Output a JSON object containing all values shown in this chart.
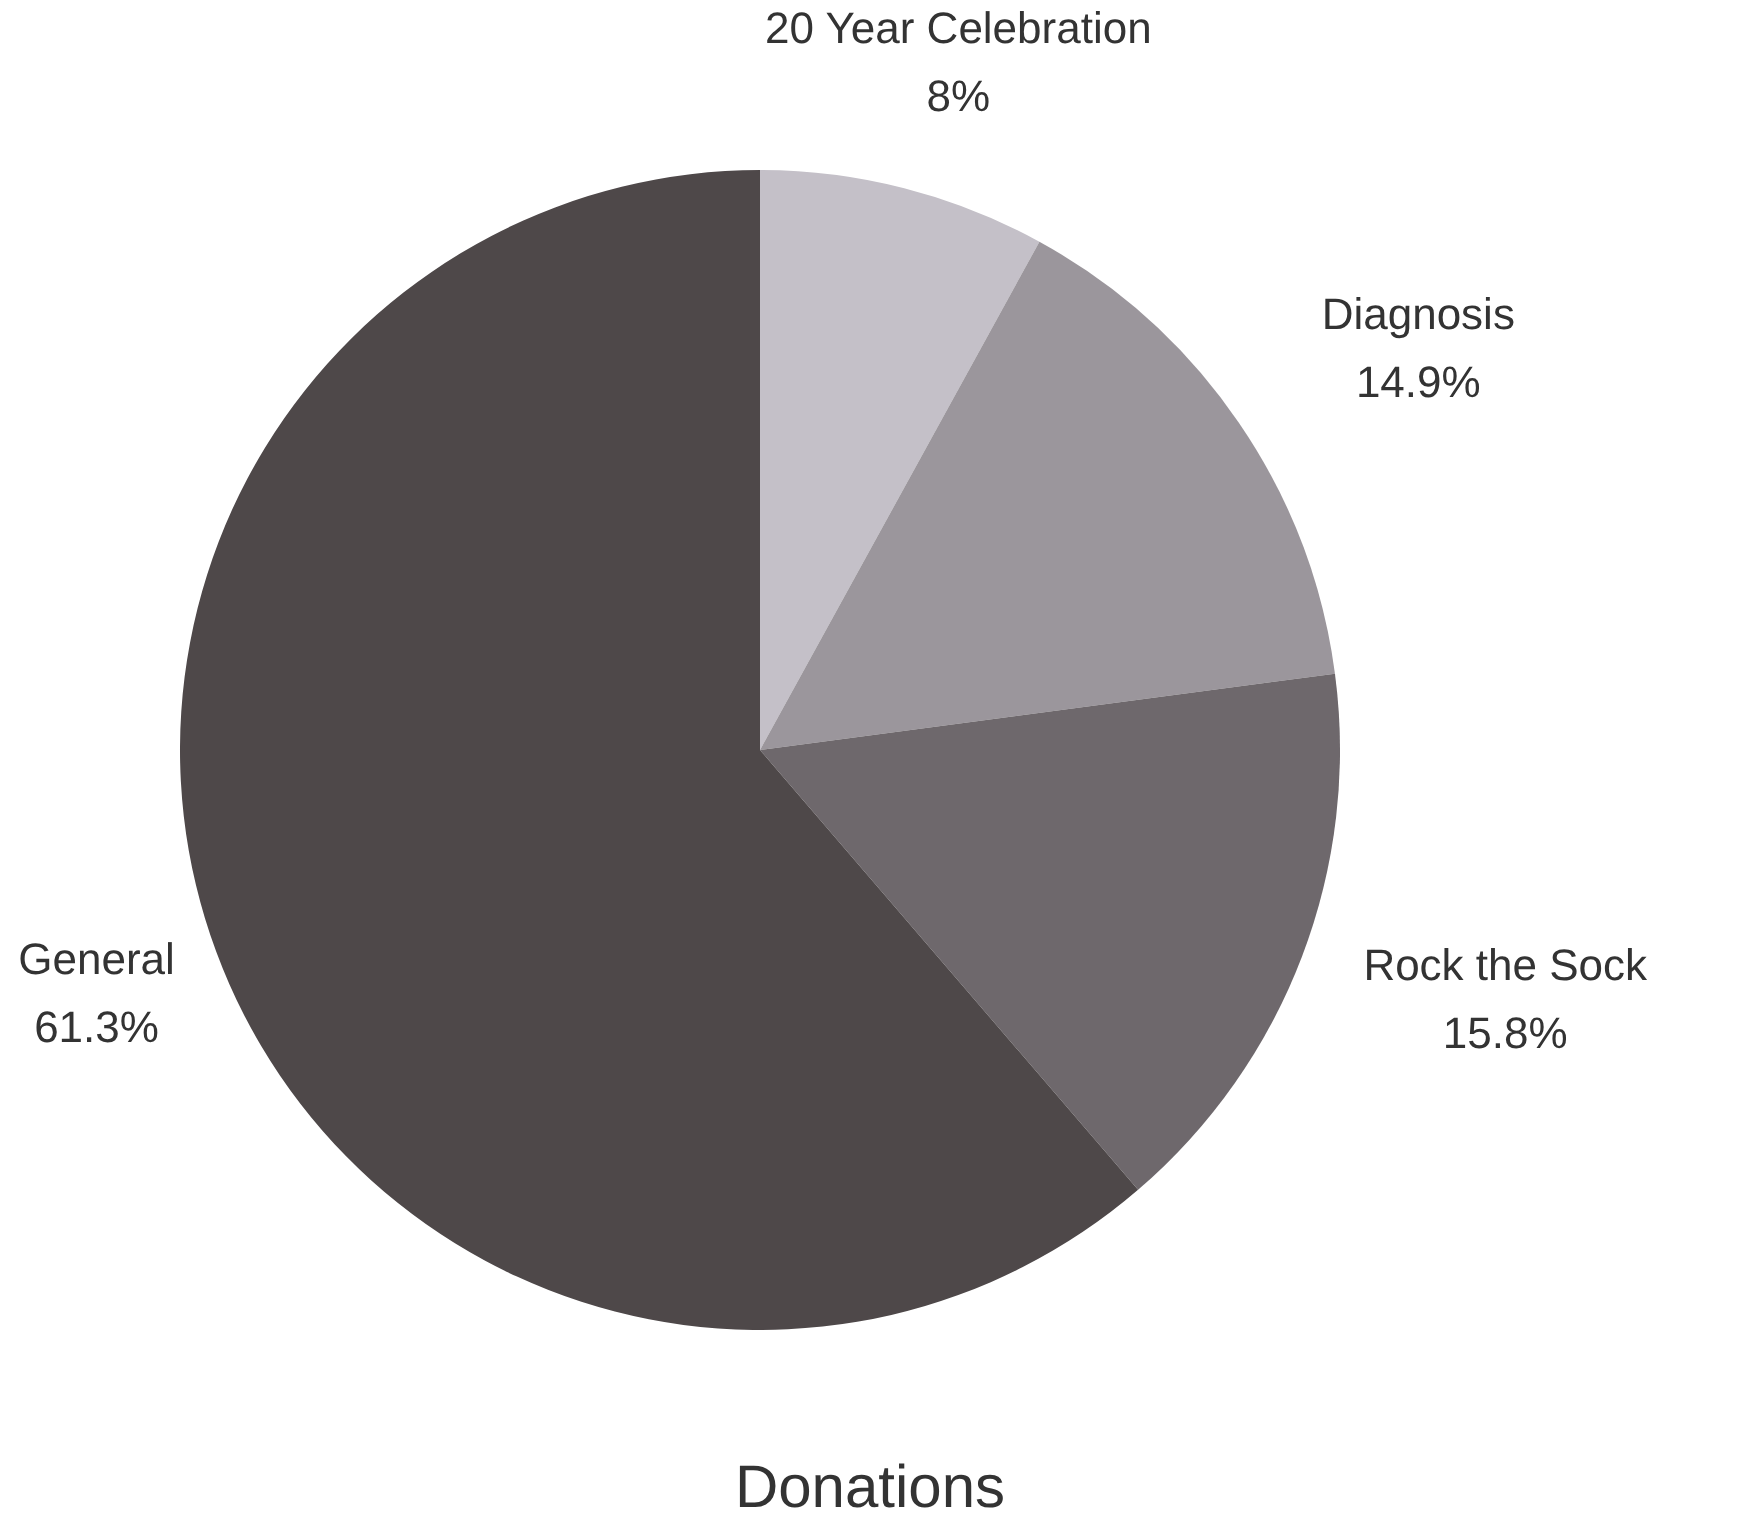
{
  "chart_data": {
    "type": "pie",
    "title": "Donations",
    "categories": [
      "20 Year Celebration",
      "Diagnosis",
      "Rock the Sock",
      "General"
    ],
    "values": [
      8,
      14.9,
      15.8,
      61.3
    ],
    "value_labels": [
      "8%",
      "14.9%",
      "15.8%",
      "61.3%"
    ],
    "colors": [
      "#c4c0c8",
      "#9b969c",
      "#6e686c",
      "#4e4849"
    ],
    "legend": false
  }
}
